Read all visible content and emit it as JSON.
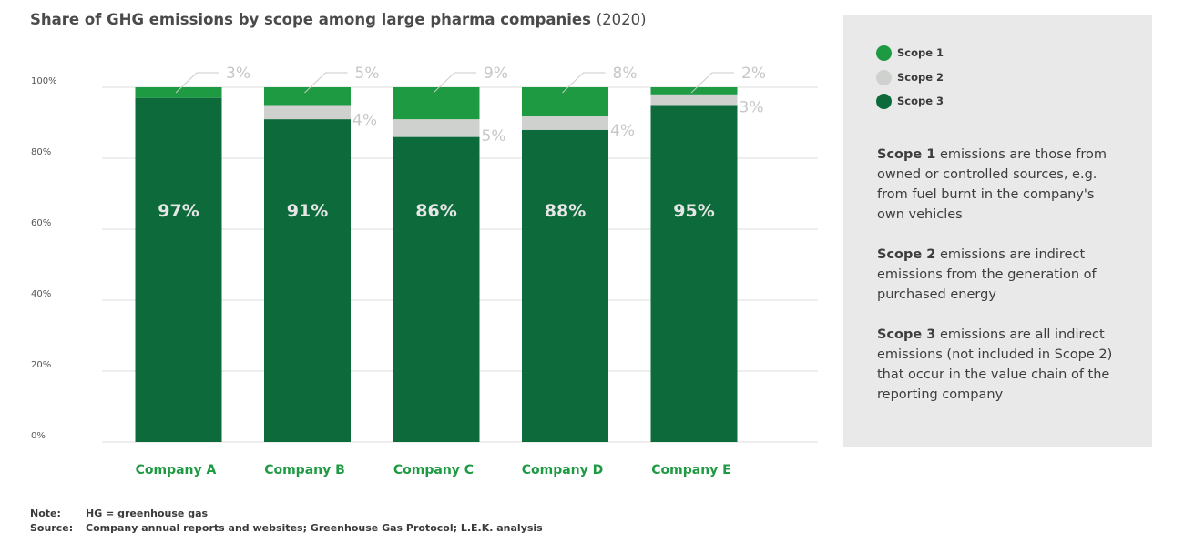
{
  "title": {
    "main": "Share of GHG emissions by scope among large pharma companies",
    "year": "(2020)"
  },
  "colors": {
    "scope1": "#1e9a43",
    "scope2": "#cfd1cf",
    "scope3": "#0d6b3b",
    "category_label": "#1e9a43",
    "bar_value_label": "#e6e6e6",
    "outside_label": "#c6c8c6",
    "gridline": "#dcdcdc",
    "panel_bg": "#e8e9e8"
  },
  "chart_data": {
    "type": "bar",
    "stacked": true,
    "title": "Share of GHG emissions by scope among large pharma companies (2020)",
    "categories": [
      "Company A",
      "Company B",
      "Company C",
      "Company D",
      "Company E"
    ],
    "series": [
      {
        "name": "Scope 3",
        "values": [
          97,
          91,
          86,
          88,
          95
        ],
        "labels": [
          "97%",
          "91%",
          "86%",
          "88%",
          "95%"
        ]
      },
      {
        "name": "Scope 2",
        "values": [
          0,
          4,
          5,
          4,
          3
        ],
        "labels": [
          "",
          "4%",
          "5%",
          "4%",
          "3%"
        ]
      },
      {
        "name": "Scope 1",
        "values": [
          3,
          5,
          9,
          8,
          2
        ],
        "labels": [
          "3%",
          "5%",
          "9%",
          "8%",
          "2%"
        ]
      }
    ],
    "ylim": [
      0,
      100
    ],
    "yticks": [
      0,
      20,
      40,
      60,
      80,
      100
    ],
    "ytick_labels": [
      "0%",
      "20%",
      "40%",
      "60%",
      "80%",
      "100%"
    ],
    "xlabel": "",
    "ylabel": "",
    "grid": true,
    "legend_position": "right"
  },
  "legend": {
    "items": [
      {
        "label": "Scope 1",
        "color": "#1e9a43"
      },
      {
        "label": "Scope 2",
        "color": "#cfd1cf"
      },
      {
        "label": "Scope 3",
        "color": "#0d6b3b"
      }
    ]
  },
  "definitions": [
    {
      "term": "Scope 1",
      "text": "emissions are those from owned or controlled sources, e.g. from fuel burnt in the company's own vehicles"
    },
    {
      "term": "Scope 2",
      "text": "emissions are indirect emissions from the generation of purchased energy"
    },
    {
      "term": "Scope 3",
      "text": "emissions are all indirect emissions (not included in Scope 2) that occur in the value chain of the reporting company"
    }
  ],
  "notes": {
    "note_label": "Note:",
    "note_text": "HG = greenhouse gas",
    "source_label": "Source:",
    "source_text": "Company annual reports and websites; Greenhouse Gas Protocol; L.E.K. analysis"
  }
}
